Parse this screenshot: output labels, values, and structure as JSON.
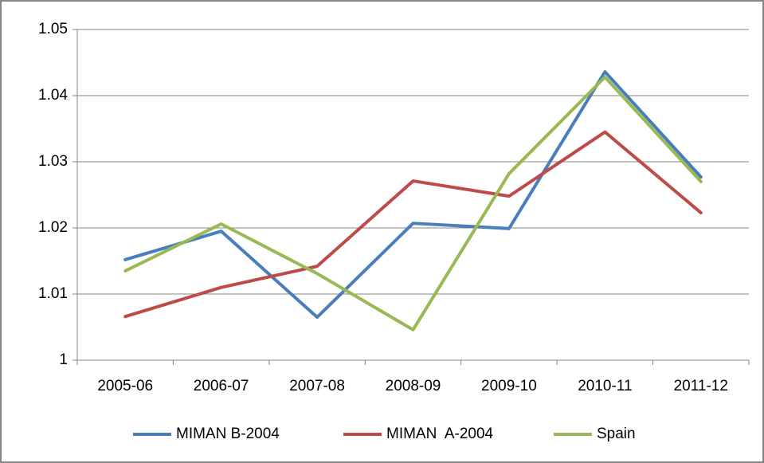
{
  "chart_data": {
    "type": "line",
    "categories": [
      "2005-06",
      "2006-07",
      "2007-08",
      "2008-09",
      "2009-10",
      "2010-11",
      "2011-12"
    ],
    "series": [
      {
        "name": "MIMAN B-2004",
        "color": "#4a7ebb",
        "values": [
          1.0152,
          1.0195,
          1.0065,
          1.0207,
          1.0199,
          1.0436,
          1.0277
        ]
      },
      {
        "name": "MIMAN  A-2004",
        "color": "#be4b48",
        "values": [
          1.0066,
          1.011,
          1.0142,
          1.0271,
          1.0248,
          1.0345,
          1.0223
        ]
      },
      {
        "name": "Spain",
        "color": "#98b954",
        "values": [
          1.0135,
          1.0206,
          1.0131,
          1.0046,
          1.0282,
          1.0428,
          1.027
        ]
      }
    ],
    "ylim": [
      1,
      1.05
    ],
    "yticks": [
      1,
      1.01,
      1.02,
      1.03,
      1.04,
      1.05
    ],
    "grid": true,
    "legend": "bottom"
  }
}
